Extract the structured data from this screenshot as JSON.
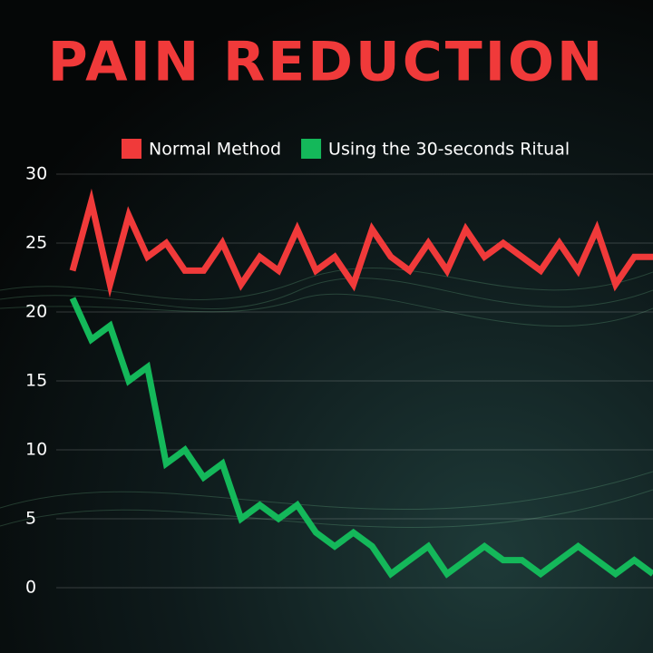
{
  "chart_data": {
    "type": "line",
    "title": "PAIN REDUCTION",
    "categories": [
      null,
      null,
      null,
      null,
      null,
      null,
      null,
      null,
      null,
      null,
      null,
      null,
      null,
      null,
      null,
      null,
      null,
      null,
      null,
      null,
      null,
      null,
      null,
      null,
      null,
      null,
      null,
      null,
      null,
      null,
      null,
      null
    ],
    "series": [
      {
        "name": "Normal Method",
        "color": "#f03a3a",
        "values": [
          23,
          28,
          22,
          27,
          24,
          25,
          23,
          23,
          25,
          22,
          24,
          23,
          26,
          23,
          24,
          22,
          26,
          24,
          23,
          25,
          23,
          26,
          24,
          25,
          24,
          23,
          25,
          23,
          26,
          22,
          24,
          24
        ]
      },
      {
        "name": "Using the 30-seconds Ritual",
        "color": "#14b85a",
        "values": [
          21,
          18,
          19,
          15,
          16,
          9,
          10,
          8,
          9,
          5,
          6,
          5,
          6,
          4,
          3,
          4,
          3,
          1,
          2,
          3,
          1,
          2,
          3,
          2,
          2,
          1,
          2,
          3,
          2,
          1,
          2,
          1
        ]
      }
    ],
    "ylim": [
      0,
      30
    ],
    "yticks": [
      0,
      5,
      10,
      15,
      20,
      25,
      30
    ],
    "grid": true,
    "legend": "top"
  }
}
